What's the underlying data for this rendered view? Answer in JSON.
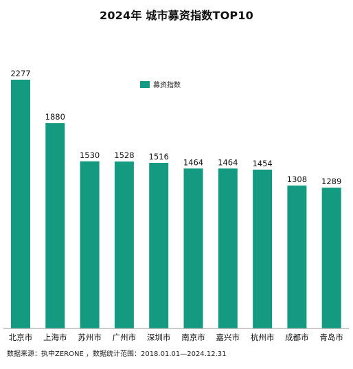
{
  "colors": {
    "bar": "#139a80",
    "axis": "#999999"
  },
  "chart_data": {
    "type": "bar",
    "title": "2024年 城市募资指数TOP10",
    "categories": [
      "北京市",
      "上海市",
      "苏州市",
      "广州市",
      "深圳市",
      "南京市",
      "嘉兴市",
      "杭州市",
      "成都市",
      "青岛市"
    ],
    "series": [
      {
        "name": "募资指数",
        "values": [
          2277,
          1880,
          1530,
          1528,
          1516,
          1464,
          1464,
          1454,
          1308,
          1289
        ]
      }
    ],
    "ylim": [
      0,
      2277
    ],
    "grid": false,
    "legend_position": "top-center"
  },
  "source": "数据来源：执中ZERONE ，数据统计范围：2018.01.01—2024.12.31"
}
